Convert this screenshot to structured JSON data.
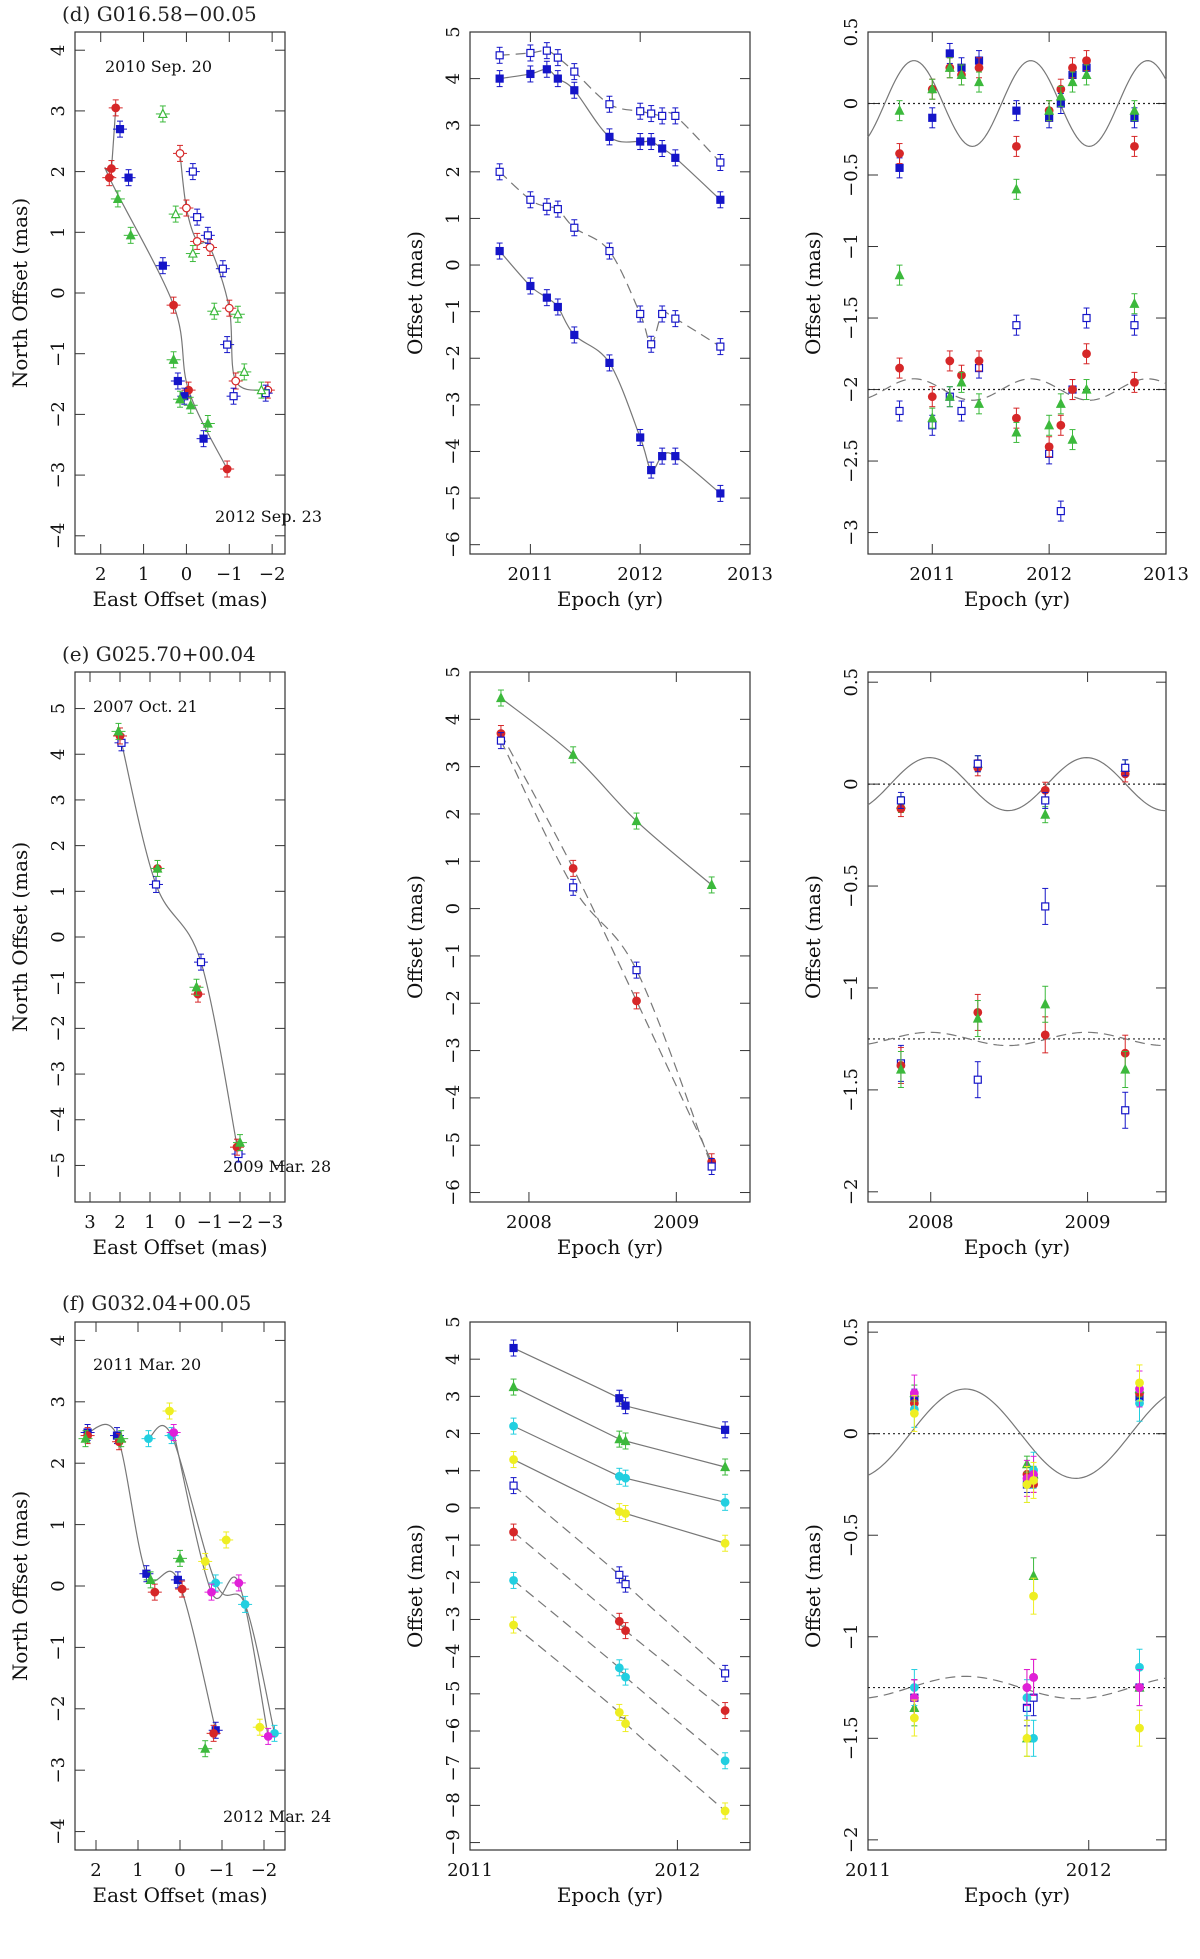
{
  "colors": {
    "red": "#d62728",
    "blue": "#1515c8",
    "green": "#3cb93c",
    "cyan": "#22cfe0",
    "magenta": "#e020d8",
    "yellow": "#eeee22",
    "grey": "#777777",
    "axis": "#333333"
  },
  "rows": [
    {
      "title": "(d) G016.58−00.05"
    },
    {
      "title": "(e) G025.70+00.04"
    },
    {
      "title": "(f) G032.04+00.05"
    }
  ],
  "chart_data": [
    {
      "type": "scatter",
      "panel": "d-sky",
      "xlabel": "East Offset (mas)",
      "ylabel": "North Offset (mas)",
      "xlim": [
        2.6,
        -2.3
      ],
      "ylim": [
        -4.3,
        4.3
      ],
      "xticks": [
        2,
        1,
        0,
        -1,
        -2
      ],
      "yticks": [
        -4,
        -3,
        -2,
        -1,
        0,
        1,
        2,
        3,
        4
      ],
      "annotations": [
        "2010 Sep. 20",
        "2012 Sep. 23"
      ],
      "series": [
        {
          "color": "red",
          "marker": "circle",
          "x": [
            1.65,
            1.75,
            1.8,
            0.3,
            -0.05,
            -0.95
          ],
          "y": [
            3.05,
            2.05,
            1.9,
            -0.2,
            -1.6,
            -2.9
          ]
        },
        {
          "color": "blue",
          "marker": "square",
          "x": [
            1.55,
            1.35,
            0.55,
            0.2,
            0.05,
            -0.4
          ],
          "y": [
            2.7,
            1.9,
            0.45,
            -1.45,
            -1.7,
            -2.4
          ]
        },
        {
          "color": "green",
          "marker": "triangle",
          "x": [
            1.6,
            1.3,
            0.3,
            0.15,
            -0.1,
            -0.5
          ],
          "y": [
            1.55,
            0.95,
            -1.1,
            -1.75,
            -1.85,
            -2.15
          ]
        },
        {
          "color": "red",
          "marker": "open-circle",
          "x": [
            0.15,
            0.0,
            -0.25,
            -0.55,
            -1.0,
            -1.15,
            -1.9
          ],
          "y": [
            2.3,
            1.4,
            0.85,
            0.75,
            -0.25,
            -1.45,
            -1.6
          ]
        },
        {
          "color": "blue",
          "marker": "open-square",
          "x": [
            -0.15,
            -0.25,
            -0.5,
            -0.85,
            -0.95,
            -1.1,
            -1.85
          ],
          "y": [
            2.0,
            1.25,
            0.95,
            0.4,
            -0.85,
            -1.7,
            -1.65
          ]
        },
        {
          "color": "green",
          "marker": "open-triangle",
          "x": [
            0.55,
            0.25,
            -0.15,
            -0.65,
            -1.2,
            -1.35,
            -1.75
          ],
          "y": [
            2.95,
            1.3,
            0.65,
            -0.3,
            -0.35,
            -1.3,
            -1.6
          ]
        }
      ]
    },
    {
      "type": "line",
      "panel": "d-time",
      "xlabel": "Epoch (yr)",
      "ylabel": "Offset (mas)",
      "xlim": [
        2010.45,
        2013.0
      ],
      "ylim": [
        -6.2,
        5.0
      ],
      "xticks": [
        2011,
        2012,
        2013
      ],
      "yticks": [
        -6,
        -5,
        -4,
        -3,
        -2,
        -1,
        0,
        1,
        2,
        3,
        4,
        5
      ],
      "epochs": [
        2010.72,
        2011.0,
        2011.15,
        2011.25,
        2011.4,
        2011.72,
        2012.0,
        2012.1,
        2012.2,
        2012.32,
        2012.73
      ],
      "series": [
        {
          "color": "blue",
          "marker": "square",
          "values": [
            4.0,
            4.1,
            4.2,
            4.0,
            3.75,
            2.75,
            2.65,
            2.65,
            2.5,
            2.3,
            1.4
          ]
        },
        {
          "color": "blue",
          "marker": "open-square",
          "values": [
            4.5,
            4.55,
            4.6,
            4.45,
            4.15,
            3.45,
            3.3,
            3.25,
            3.2,
            3.2,
            2.2
          ]
        },
        {
          "color": "blue",
          "marker": "square",
          "values": [
            0.3,
            -0.45,
            -0.7,
            -0.9,
            -1.5,
            -2.1,
            -3.7,
            -4.4,
            -4.1,
            -4.1,
            -4.9
          ]
        },
        {
          "color": "blue",
          "marker": "open-square",
          "values": [
            2.0,
            1.4,
            1.25,
            1.2,
            0.8,
            0.3,
            -1.05,
            -1.7,
            -1.05,
            -1.15,
            -1.75
          ]
        }
      ],
      "annotations": []
    },
    {
      "type": "line",
      "panel": "d-residual",
      "xlabel": "Epoch (yr)",
      "ylabel": "Offset (mas)",
      "xlim": [
        2010.45,
        2013.0
      ],
      "ylim": [
        -3.15,
        0.5
      ],
      "xticks": [
        2011,
        2012,
        2013
      ],
      "yticks": [
        -3,
        -2.5,
        -2,
        -1.5,
        -1,
        -0.5,
        0,
        0.5
      ],
      "epochs": [
        2010.72,
        2011.0,
        2011.15,
        2011.25,
        2011.4,
        2011.72,
        2012.0,
        2012.1,
        2012.2,
        2012.32,
        2012.73
      ],
      "series": [
        {
          "color": "blue",
          "marker": "square",
          "values": [
            -0.45,
            -0.1,
            0.35,
            0.25,
            0.3,
            -0.05,
            -0.1,
            0.0,
            0.2,
            0.25,
            -0.1
          ]
        },
        {
          "color": "red",
          "marker": "circle",
          "values": [
            -0.35,
            0.1,
            0.25,
            0.2,
            0.25,
            -0.3,
            -0.05,
            0.1,
            0.25,
            0.3,
            -0.3
          ]
        },
        {
          "color": "green",
          "marker": "triangle",
          "values": [
            -0.05,
            0.1,
            0.25,
            0.2,
            0.15,
            -0.6,
            -0.05,
            0.05,
            0.15,
            0.2,
            -0.05
          ]
        },
        {
          "color": "blue",
          "marker": "open-square",
          "values": [
            -2.15,
            -2.25,
            -2.05,
            -2.15,
            -1.85,
            -1.55,
            -2.45,
            -2.85,
            -2.0,
            -1.5,
            -1.55
          ]
        },
        {
          "color": "red",
          "marker": "circle",
          "values": [
            -1.85,
            -2.05,
            -1.8,
            -1.9,
            -1.8,
            -2.2,
            -2.4,
            -2.25,
            -2.0,
            -1.75,
            -1.95
          ]
        },
        {
          "color": "green",
          "marker": "triangle",
          "values": [
            -1.2,
            -2.2,
            -2.05,
            -1.95,
            -2.1,
            -2.3,
            -2.25,
            -2.1,
            -2.35,
            -2.0,
            -1.4
          ]
        }
      ],
      "annotations": []
    },
    {
      "type": "scatter",
      "panel": "e-sky",
      "xlabel": "East Offset (mas)",
      "ylabel": "North Offset (mas)",
      "xlim": [
        3.5,
        -3.5
      ],
      "ylim": [
        -5.8,
        5.8
      ],
      "xticks": [
        3,
        2,
        1,
        0,
        -1,
        -2,
        -3
      ],
      "yticks": [
        -5,
        -4,
        -3,
        -2,
        -1,
        0,
        1,
        2,
        3,
        4,
        5
      ],
      "annotations": [
        "2007 Oct. 21",
        "2009 Mar. 28"
      ],
      "series": [
        {
          "color": "blue",
          "marker": "open-square",
          "x": [
            1.95,
            0.8,
            -0.7,
            -1.95
          ],
          "y": [
            4.25,
            1.15,
            -0.55,
            -4.75
          ]
        },
        {
          "color": "red",
          "marker": "circle",
          "x": [
            2.0,
            0.75,
            -0.6,
            -1.9
          ],
          "y": [
            4.4,
            1.5,
            -1.25,
            -4.6
          ]
        },
        {
          "color": "green",
          "marker": "triangle",
          "x": [
            2.05,
            0.75,
            -0.55,
            -2.0
          ],
          "y": [
            4.5,
            1.5,
            -1.1,
            -4.5
          ]
        }
      ]
    },
    {
      "type": "line",
      "panel": "e-time",
      "xlabel": "Epoch (yr)",
      "ylabel": "Offset (mas)",
      "xlim": [
        2007.6,
        2009.5
      ],
      "ylim": [
        -6.2,
        5.0
      ],
      "xticks": [
        2008,
        2009
      ],
      "yticks": [
        -6,
        -5,
        -4,
        -3,
        -2,
        -1,
        0,
        1,
        2,
        3,
        4,
        5
      ],
      "epochs": [
        2007.81,
        2008.3,
        2008.73,
        2009.24
      ],
      "series": [
        {
          "color": "green",
          "marker": "triangle",
          "values": [
            4.45,
            3.25,
            1.85,
            0.5
          ]
        },
        {
          "color": "red",
          "marker": "circle",
          "values": [
            3.7,
            0.85,
            -1.95,
            -5.35
          ]
        },
        {
          "color": "blue",
          "marker": "open-square",
          "values": [
            3.55,
            0.45,
            -1.3,
            -5.45
          ]
        }
      ],
      "annotations": []
    },
    {
      "type": "line",
      "panel": "e-residual",
      "xlabel": "Epoch (yr)",
      "ylabel": "Offset (mas)",
      "xlim": [
        2007.6,
        2009.5
      ],
      "ylim": [
        -2.05,
        0.55
      ],
      "xticks": [
        2008,
        2009
      ],
      "yticks": [
        -2,
        -1.5,
        -1,
        -0.5,
        0,
        0.5
      ],
      "epochs": [
        2007.81,
        2008.3,
        2008.73,
        2009.24
      ],
      "series": [
        {
          "color": "green",
          "marker": "triangle",
          "values": [
            -0.1,
            0.1,
            -0.15,
            0.08
          ]
        },
        {
          "color": "red",
          "marker": "circle",
          "values": [
            -0.12,
            0.08,
            -0.03,
            0.05
          ]
        },
        {
          "color": "blue",
          "marker": "open-square",
          "values": [
            -0.08,
            0.1,
            -0.08,
            0.08
          ]
        },
        {
          "color": "blue",
          "marker": "open-square",
          "values": [
            -1.37,
            -1.45,
            -0.6,
            -1.6
          ]
        },
        {
          "color": "red",
          "marker": "circle",
          "values": [
            -1.38,
            -1.12,
            -1.23,
            -1.32
          ]
        },
        {
          "color": "green",
          "marker": "triangle",
          "values": [
            -1.4,
            -1.15,
            -1.08,
            -1.4
          ]
        }
      ],
      "annotations": []
    },
    {
      "type": "scatter",
      "panel": "f-sky",
      "xlabel": "East Offset (mas)",
      "ylabel": "North Offset (mas)",
      "xlim": [
        2.5,
        -2.5
      ],
      "ylim": [
        -4.3,
        4.3
      ],
      "xticks": [
        2,
        1,
        0,
        -1,
        -2
      ],
      "yticks": [
        -4,
        -3,
        -2,
        -1,
        0,
        1,
        2,
        3,
        4
      ],
      "annotations": [
        "2011 Mar. 20",
        "2012 Mar. 24"
      ],
      "series": [
        {
          "color": "blue",
          "marker": "square",
          "x": [
            2.2,
            1.5,
            0.8,
            0.05,
            -0.85
          ],
          "y": [
            2.5,
            2.45,
            0.2,
            0.1,
            -2.35
          ]
        },
        {
          "color": "red",
          "marker": "circle",
          "x": [
            2.2,
            1.45,
            0.6,
            -0.05,
            -0.8
          ],
          "y": [
            2.45,
            2.35,
            -0.1,
            -0.05,
            -2.4
          ]
        },
        {
          "color": "green",
          "marker": "triangle",
          "x": [
            2.25,
            1.4,
            0.7,
            0.0,
            -0.6
          ],
          "y": [
            2.4,
            2.4,
            0.1,
            0.45,
            -2.65
          ]
        },
        {
          "color": "cyan",
          "marker": "circle",
          "x": [
            0.75,
            0.2,
            -0.85,
            -1.55,
            -2.25
          ],
          "y": [
            2.4,
            2.45,
            0.05,
            -0.3,
            -2.4
          ]
        },
        {
          "color": "magenta",
          "marker": "circle",
          "x": [
            0.15,
            -0.75,
            -1.4,
            -2.1
          ],
          "y": [
            2.5,
            -0.1,
            0.05,
            -2.45
          ]
        },
        {
          "color": "yellow",
          "marker": "circle",
          "x": [
            0.25,
            -0.6,
            -1.1,
            -1.9
          ],
          "y": [
            2.85,
            0.4,
            0.75,
            -2.3
          ]
        }
      ]
    },
    {
      "type": "line",
      "panel": "f-time",
      "xlabel": "Epoch (yr)",
      "ylabel": "Offset (mas)",
      "xlim": [
        2011.0,
        2012.35
      ],
      "ylim": [
        -9.2,
        5.0
      ],
      "xticks": [
        2011,
        2012
      ],
      "yticks": [
        -9,
        -8,
        -7,
        -6,
        -5,
        -4,
        -3,
        -2,
        -1,
        0,
        1,
        2,
        3,
        4,
        5
      ],
      "epochs": [
        2011.21,
        2011.72,
        2011.75,
        2012.23
      ],
      "series": [
        {
          "color": "blue",
          "marker": "square",
          "values": [
            4.3,
            2.95,
            2.75,
            2.1
          ]
        },
        {
          "color": "green",
          "marker": "triangle",
          "values": [
            3.25,
            1.85,
            1.8,
            1.1
          ]
        },
        {
          "color": "cyan",
          "marker": "circle",
          "values": [
            2.2,
            0.85,
            0.8,
            0.15
          ]
        },
        {
          "color": "yellow",
          "marker": "circle",
          "values": [
            1.3,
            -0.1,
            -0.15,
            -0.95
          ]
        },
        {
          "color": "blue",
          "marker": "open-square",
          "values": [
            0.6,
            -1.8,
            -2.05,
            -4.45
          ]
        },
        {
          "color": "red",
          "marker": "circle",
          "values": [
            -0.65,
            -3.05,
            -3.3,
            -5.45
          ]
        },
        {
          "color": "cyan",
          "marker": "circle",
          "values": [
            -1.95,
            -4.3,
            -4.55,
            -6.8
          ]
        },
        {
          "color": "yellow",
          "marker": "circle",
          "values": [
            -3.15,
            -5.5,
            -5.8,
            -8.15
          ]
        }
      ],
      "annotations": []
    },
    {
      "type": "line",
      "panel": "f-residual",
      "xlabel": "Epoch (yr)",
      "ylabel": "Offset (mas)",
      "xlim": [
        2011.0,
        2012.35
      ],
      "ylim": [
        -2.05,
        0.55
      ],
      "xticks": [
        2011,
        2012
      ],
      "yticks": [
        -2,
        -1.5,
        -1,
        -0.5,
        0,
        0.5
      ],
      "epochs": [
        2011.21,
        2011.72,
        2011.75,
        2012.23
      ],
      "series": [
        {
          "color": "blue",
          "marker": "square",
          "values": [
            0.18,
            -0.25,
            -0.22,
            0.18
          ]
        },
        {
          "color": "red",
          "marker": "circle",
          "values": [
            0.15,
            -0.2,
            -0.25,
            0.2
          ]
        },
        {
          "color": "green",
          "marker": "triangle",
          "values": [
            0.2,
            -0.15,
            -0.2,
            0.22
          ]
        },
        {
          "color": "cyan",
          "marker": "circle",
          "values": [
            0.12,
            -0.25,
            -0.18,
            0.15
          ]
        },
        {
          "color": "magenta",
          "marker": "circle",
          "values": [
            0.2,
            -0.22,
            -0.2,
            0.22
          ]
        },
        {
          "color": "yellow",
          "marker": "circle",
          "values": [
            0.1,
            -0.25,
            -0.23,
            0.25
          ]
        },
        {
          "color": "blue",
          "marker": "open-square",
          "values": [
            -1.3,
            -1.35,
            -1.3,
            -1.25
          ]
        },
        {
          "color": "red",
          "marker": "circle",
          "values": [
            -1.3,
            -1.25,
            -1.2,
            -1.25
          ]
        },
        {
          "color": "green",
          "marker": "triangle",
          "values": [
            -1.35,
            -1.5,
            -0.7,
            -1.25
          ]
        },
        {
          "color": "cyan",
          "marker": "circle",
          "values": [
            -1.25,
            -1.3,
            -1.5,
            -1.15
          ]
        },
        {
          "color": "magenta",
          "marker": "circle",
          "values": [
            -1.3,
            -1.25,
            -1.2,
            -1.25
          ]
        },
        {
          "color": "yellow",
          "marker": "circle",
          "values": [
            -1.4,
            -1.5,
            -0.8,
            -1.45
          ]
        }
      ],
      "annotations": []
    }
  ]
}
